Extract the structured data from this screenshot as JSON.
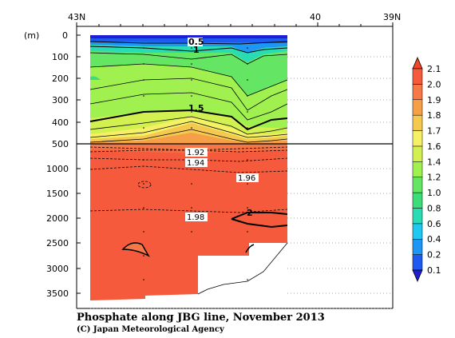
{
  "chart_data": {
    "type": "heatmap",
    "title": "Phosphate along JBG line, November 2013",
    "credit": "(C) Japan Meteorological Agency",
    "ylabel": "(m)",
    "top_axis_labels": [
      "43N",
      "40",
      "39N"
    ],
    "upper_panel": {
      "ylim": [
        0,
        500
      ],
      "ticks": [
        "0",
        "100",
        "200",
        "300",
        "400",
        "500"
      ]
    },
    "lower_panel": {
      "ylim": [
        500,
        3800
      ],
      "ticks": [
        "1000",
        "1500",
        "2000",
        "2500",
        "3000",
        "3500"
      ]
    },
    "contour_labels": [
      "0.5",
      "1",
      "1.5",
      "1.92",
      "1.94",
      "1.96",
      "1.98",
      "2"
    ],
    "colorbar": {
      "levels": [
        "0.1",
        "0.2",
        "0.4",
        "0.6",
        "0.8",
        "1.0",
        "1.2",
        "1.4",
        "1.6",
        "1.7",
        "1.8",
        "1.9",
        "2.0",
        "2.1"
      ],
      "colors": [
        "#1e1ed2",
        "#1e5af0",
        "#1e96f5",
        "#1ec8f0",
        "#28dcb4",
        "#3cdc78",
        "#64e664",
        "#a0f050",
        "#d2f050",
        "#f5f064",
        "#f5c850",
        "#f5a046",
        "#f57846",
        "#f55a3c",
        "#f04628"
      ]
    }
  }
}
